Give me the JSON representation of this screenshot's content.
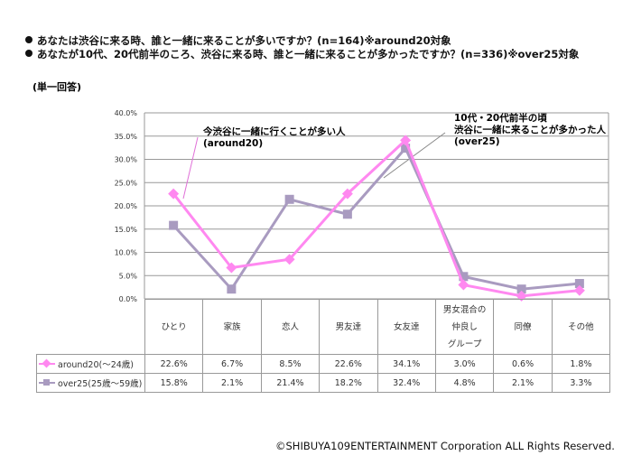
{
  "questions": [
    "あなたは渋谷に来る時、誰と一緒に来ることが多いですか？(n=164)※around20対象",
    "あなたが10代、20代前半のころ、渋谷に来る時、誰と一緒に来ることが多かったですか？(n=336)※over25対象"
  ],
  "subtitle": "(単一回答)",
  "copyright": "©SHIBUYA109ENTERTAINMENT Corporation  ALL Rights Reserved.",
  "annotations": {
    "a1": [
      "今渋谷に一緒に行くことが多い人",
      "(around20)"
    ],
    "a2": [
      "10代・20代前半の頃",
      "渋谷に一緒に来ることが多かった人",
      "(over25)"
    ]
  },
  "chart_data": {
    "type": "line",
    "categories": [
      "ひとり",
      "家族",
      "恋人",
      "男友達",
      "女友達",
      "男女混合の仲良しグループ",
      "同僚",
      "その他"
    ],
    "category_lines": [
      [
        "ひとり"
      ],
      [
        "家族"
      ],
      [
        "恋人"
      ],
      [
        "男友達"
      ],
      [
        "女友達"
      ],
      [
        "男女混合の",
        "仲良し",
        "グループ"
      ],
      [
        "同僚"
      ],
      [
        "その他"
      ]
    ],
    "yticks": [
      "0.0%",
      "5.0%",
      "10.0%",
      "15.0%",
      "20.0%",
      "25.0%",
      "30.0%",
      "35.0%",
      "40.0%"
    ],
    "ylim": [
      0,
      40
    ],
    "grid": true,
    "legend": "data-table",
    "series": [
      {
        "name": "around20(〜24歳)",
        "color": "#FF88F0",
        "marker": "diamond",
        "values": [
          22.6,
          6.7,
          8.5,
          22.6,
          34.1,
          3.0,
          0.6,
          1.8
        ],
        "labels": [
          "22.6%",
          "6.7%",
          "8.5%",
          "22.6%",
          "34.1%",
          "3.0%",
          "0.6%",
          "1.8%"
        ]
      },
      {
        "name": "over25(25歳〜59歳)",
        "color": "#A99BC0",
        "marker": "square",
        "values": [
          15.8,
          2.1,
          21.4,
          18.2,
          32.4,
          4.8,
          2.1,
          3.3
        ],
        "labels": [
          "15.8%",
          "2.1%",
          "21.4%",
          "18.2%",
          "32.4%",
          "4.8%",
          "2.1%",
          "3.3%"
        ]
      }
    ]
  }
}
